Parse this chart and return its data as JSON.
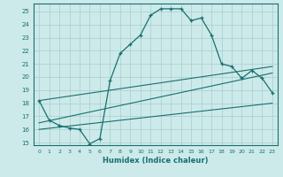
{
  "xlabel": "Humidex (Indice chaleur)",
  "background_color": "#cceaea",
  "grid_color": "#aacccc",
  "line_color": "#1a6e6e",
  "xlim": [
    -0.5,
    23.5
  ],
  "ylim": [
    14.8,
    25.6
  ],
  "yticks": [
    15,
    16,
    17,
    18,
    19,
    20,
    21,
    22,
    23,
    24,
    25
  ],
  "xticks": [
    0,
    1,
    2,
    3,
    4,
    5,
    6,
    7,
    8,
    9,
    10,
    11,
    12,
    13,
    14,
    15,
    16,
    17,
    18,
    19,
    20,
    21,
    22,
    23
  ],
  "main_x": [
    0,
    1,
    2,
    3,
    4,
    5,
    6,
    7,
    8,
    9,
    10,
    11,
    12,
    13,
    14,
    15,
    16,
    17,
    18,
    19,
    20,
    21,
    22,
    23
  ],
  "main_y": [
    18.2,
    16.7,
    16.3,
    16.1,
    16.0,
    14.9,
    15.3,
    19.7,
    21.8,
    22.5,
    23.2,
    24.7,
    25.2,
    25.2,
    25.2,
    24.3,
    24.5,
    23.2,
    21.0,
    20.8,
    19.9,
    20.5,
    19.9,
    18.8
  ],
  "line2_x": [
    0,
    23
  ],
  "line2_y": [
    18.2,
    20.8
  ],
  "line3_x": [
    0,
    23
  ],
  "line3_y": [
    16.5,
    20.3
  ],
  "line4_x": [
    0,
    23
  ],
  "line4_y": [
    16.0,
    18.0
  ]
}
